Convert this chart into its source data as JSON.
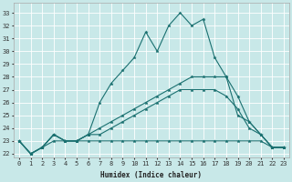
{
  "xlabel": "Humidex (Indice chaleur)",
  "ylabel": "",
  "xlim": [
    -0.5,
    23.5
  ],
  "ylim": [
    21.7,
    33.8
  ],
  "yticks": [
    22,
    23,
    24,
    25,
    26,
    27,
    28,
    29,
    30,
    31,
    32,
    33
  ],
  "xticks": [
    0,
    1,
    2,
    3,
    4,
    5,
    6,
    7,
    8,
    9,
    10,
    11,
    12,
    13,
    14,
    15,
    16,
    17,
    18,
    19,
    20,
    21,
    22,
    23
  ],
  "background_color": "#c8e8e8",
  "grid_color": "#ffffff",
  "line_color": "#1a7070",
  "series": [
    {
      "x": [
        0,
        1,
        2,
        3,
        4,
        5,
        6,
        7,
        8,
        9,
        10,
        11,
        12,
        13,
        14,
        15,
        16,
        17,
        18,
        19,
        20,
        21,
        22,
        23
      ],
      "y": [
        23,
        22,
        22.5,
        23.5,
        23,
        23,
        23.5,
        26,
        27.5,
        28.5,
        29.5,
        31.5,
        30,
        32,
        33,
        32,
        32.5,
        29.5,
        28,
        26.5,
        24.5,
        23.5,
        22.5,
        22.5
      ]
    },
    {
      "x": [
        0,
        1,
        2,
        3,
        4,
        5,
        6,
        7,
        8,
        9,
        10,
        11,
        12,
        13,
        14,
        15,
        16,
        17,
        18,
        19,
        20,
        21,
        22,
        23
      ],
      "y": [
        23,
        22,
        22.5,
        23.5,
        23,
        23,
        23.5,
        24,
        24.5,
        25,
        25.5,
        26,
        26.5,
        27,
        27.5,
        28,
        28,
        28,
        28,
        25,
        24.5,
        23.5,
        22.5,
        22.5
      ]
    },
    {
      "x": [
        0,
        1,
        2,
        3,
        4,
        5,
        6,
        7,
        8,
        9,
        10,
        11,
        12,
        13,
        14,
        15,
        16,
        17,
        18,
        19,
        20,
        21,
        22,
        23
      ],
      "y": [
        23,
        22,
        22.5,
        23.5,
        23,
        23,
        23.5,
        23.5,
        24,
        24.5,
        25,
        25.5,
        26,
        26.5,
        27,
        27,
        27,
        27,
        26.5,
        25.5,
        24,
        23.5,
        22.5,
        22.5
      ]
    },
    {
      "x": [
        0,
        1,
        2,
        3,
        4,
        5,
        6,
        7,
        8,
        9,
        10,
        11,
        12,
        13,
        14,
        15,
        16,
        17,
        18,
        19,
        20,
        21,
        22,
        23
      ],
      "y": [
        23,
        22,
        22.5,
        23,
        23,
        23,
        23,
        23,
        23,
        23,
        23,
        23,
        23,
        23,
        23,
        23,
        23,
        23,
        23,
        23,
        23,
        23,
        22.5,
        22.5
      ]
    }
  ]
}
